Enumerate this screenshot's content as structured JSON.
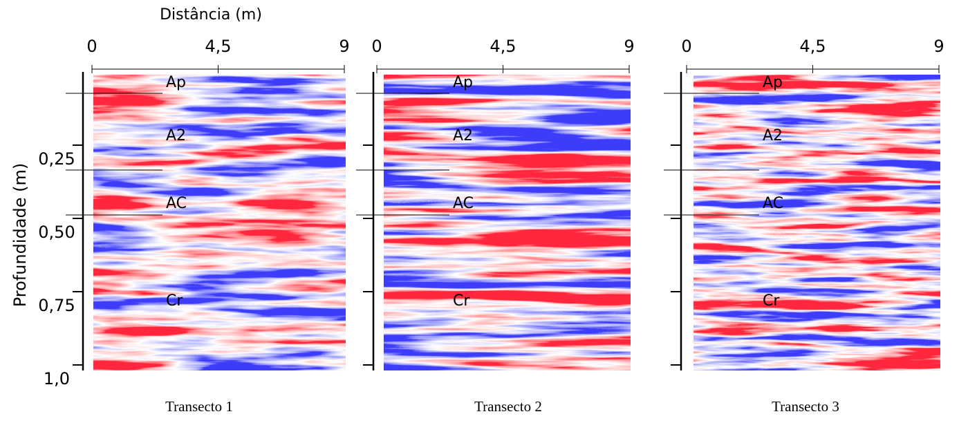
{
  "figure": {
    "x_axis": {
      "label": "Distância (m)"
    },
    "y_axis": {
      "label": "Profundidade (m)",
      "ylim": [
        0,
        1.0
      ],
      "ticks": [
        {
          "value": 0.25,
          "label": "0,25"
        },
        {
          "value": 0.5,
          "label": "0,50"
        },
        {
          "value": 0.75,
          "label": "0,75"
        },
        {
          "value": 1.0,
          "label": "1,0"
        }
      ]
    },
    "panels": [
      {
        "caption": "Transecto 1",
        "xlim": [
          0,
          9
        ],
        "xticks": [
          0,
          {
            "value": 4.5,
            "label": "4,5"
          },
          9
        ],
        "layers": [
          "Ap",
          "A2",
          "AC",
          "Cr"
        ]
      },
      {
        "caption": "Transecto 2",
        "xlim": [
          0,
          9
        ],
        "xticks": [
          0,
          {
            "value": 4.5,
            "label": "4,5"
          },
          9
        ],
        "layers": [
          "Ap",
          "A2",
          "AC",
          "Cr"
        ]
      },
      {
        "caption": "Transecto 3",
        "xlim": [
          0,
          9
        ],
        "xticks": [
          0,
          {
            "value": 4.5,
            "label": "4,5"
          },
          9
        ],
        "layers": [
          "Ap",
          "A2",
          "AC",
          "Cr"
        ]
      }
    ]
  }
}
